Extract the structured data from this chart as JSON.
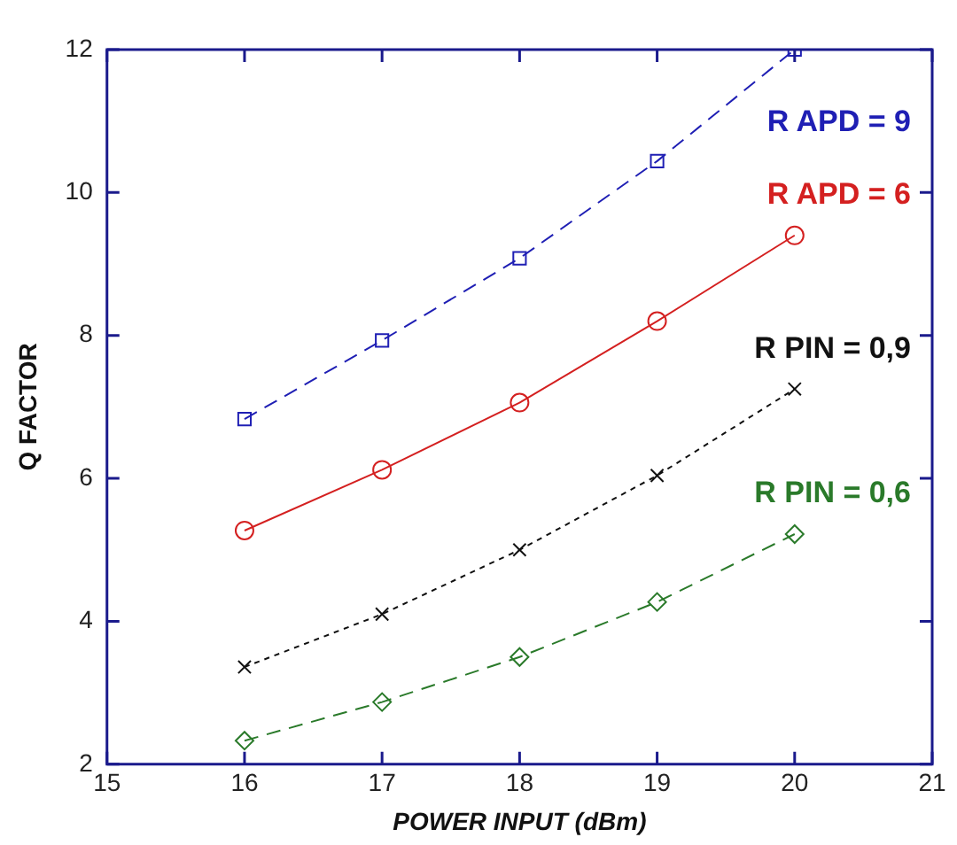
{
  "chart_data": {
    "type": "line",
    "xlabel": "POWER INPUT (dBm)",
    "ylabel": "Q FACTOR",
    "x": [
      16,
      17,
      18,
      19,
      20
    ],
    "series": [
      {
        "name": "R APD = 9",
        "color": "#1f1fb4",
        "values": [
          6.83,
          7.93,
          9.08,
          10.44,
          12.0
        ],
        "marker": "square",
        "line_style": "dashed"
      },
      {
        "name": "R APD = 6",
        "color": "#d42020",
        "values": [
          5.27,
          6.12,
          7.06,
          8.2,
          9.4
        ],
        "marker": "circle",
        "line_style": "solid"
      },
      {
        "name": "R PIN = 0,9",
        "color": "#111111",
        "values": [
          3.36,
          4.1,
          5.0,
          6.04,
          7.25
        ],
        "marker": "cross",
        "line_style": "dotted"
      },
      {
        "name": "R PIN = 0,6",
        "color": "#2a7a2a",
        "values": [
          2.33,
          2.87,
          3.5,
          4.27,
          5.22
        ],
        "marker": "diamond",
        "line_style": "dashed"
      }
    ],
    "xlim": [
      15,
      21
    ],
    "xticks": [
      15,
      16,
      17,
      18,
      19,
      20,
      21
    ],
    "ylim": [
      2,
      12
    ],
    "yticks": [
      2,
      4,
      6,
      8,
      10,
      12
    ],
    "grid": false,
    "legend": false
  }
}
